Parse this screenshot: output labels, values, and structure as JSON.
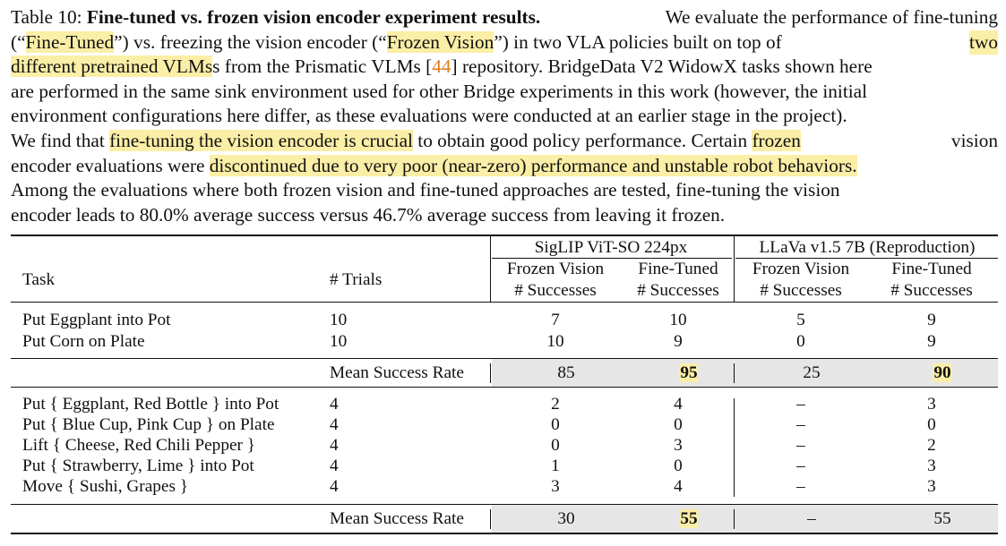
{
  "caption": {
    "label": "Table 10:",
    "title": "Fine-tuned vs. frozen vision encoder experiment results.",
    "l1_rest": "We evaluate the performance of fine-tuning",
    "l2_a": "(“",
    "l2_hl1": "Fine-Tuned",
    "l2_b": "”) vs. freezing the vision encoder (“",
    "l2_hl2": "Frozen Vision",
    "l2_c": "”) in two VLA policies built on top of",
    "l2_hl3": "two",
    "l3_hl": "different pretrained VLMs",
    "l3_a": "s from the Prismatic VLMs [",
    "l3_ref": "44",
    "l3_b": "] repository. BridgeData V2 WidowX tasks shown here",
    "l4": "are performed in the same sink environment used for other Bridge experiments in this work (however, the initial",
    "l5": "environment configurations here differ, as these evaluations were conducted at an earlier stage in the project).",
    "l6_a": "We find that",
    "l6_hl1": "fine-tuning the vision encoder is crucial",
    "l6_b": "to obtain good policy performance. Certain",
    "l6_hl2": "frozen",
    "l6_c": "vision",
    "l7_a": "encoder evaluations were",
    "l7_hl": "discontinued due to very poor (near-zero) performance and unstable robot behaviors.",
    "l8": "Among the evaluations where both frozen vision and fine-tuned approaches are tested, fine-tuning the vision",
    "l9": "encoder leads to 80.0% average success versus 46.7% average success from leaving it frozen."
  },
  "table": {
    "headers": {
      "task": "Task",
      "trials": "# Trials",
      "group1": "SigLIP ViT-SO 224px",
      "group2": "LLaVa v1.5 7B (Reproduction)",
      "frozen": "Frozen Vision",
      "finetuned": "Fine-Tuned",
      "successes": "# Successes"
    },
    "section1": [
      {
        "task": "Put Eggplant into Pot",
        "trials": "10",
        "v": [
          "7",
          "10",
          "5",
          "9"
        ]
      },
      {
        "task": "Put Corn on Plate",
        "trials": "10",
        "v": [
          "10",
          "9",
          "0",
          "9"
        ]
      }
    ],
    "mean1": {
      "label": "Mean Success Rate",
      "v": [
        "85",
        "95",
        "25",
        "90"
      ]
    },
    "section2": [
      {
        "task": "Put { Eggplant, Red Bottle } into Pot",
        "trials": "4",
        "v": [
          "2",
          "4",
          "–",
          "3"
        ]
      },
      {
        "task": "Put { Blue Cup, Pink Cup } on Plate",
        "trials": "4",
        "v": [
          "0",
          "0",
          "–",
          "0"
        ]
      },
      {
        "task": "Lift { Cheese, Red Chili Pepper }",
        "trials": "4",
        "v": [
          "0",
          "3",
          "–",
          "2"
        ]
      },
      {
        "task": "Put { Strawberry, Lime } into Pot",
        "trials": "4",
        "v": [
          "1",
          "0",
          "–",
          "3"
        ]
      },
      {
        "task": "Move { Sushi, Grapes }",
        "trials": "4",
        "v": [
          "3",
          "4",
          "–",
          "3"
        ]
      }
    ],
    "mean2": {
      "label": "Mean Success Rate",
      "v": [
        "30",
        "55",
        "–",
        "55"
      ]
    }
  }
}
